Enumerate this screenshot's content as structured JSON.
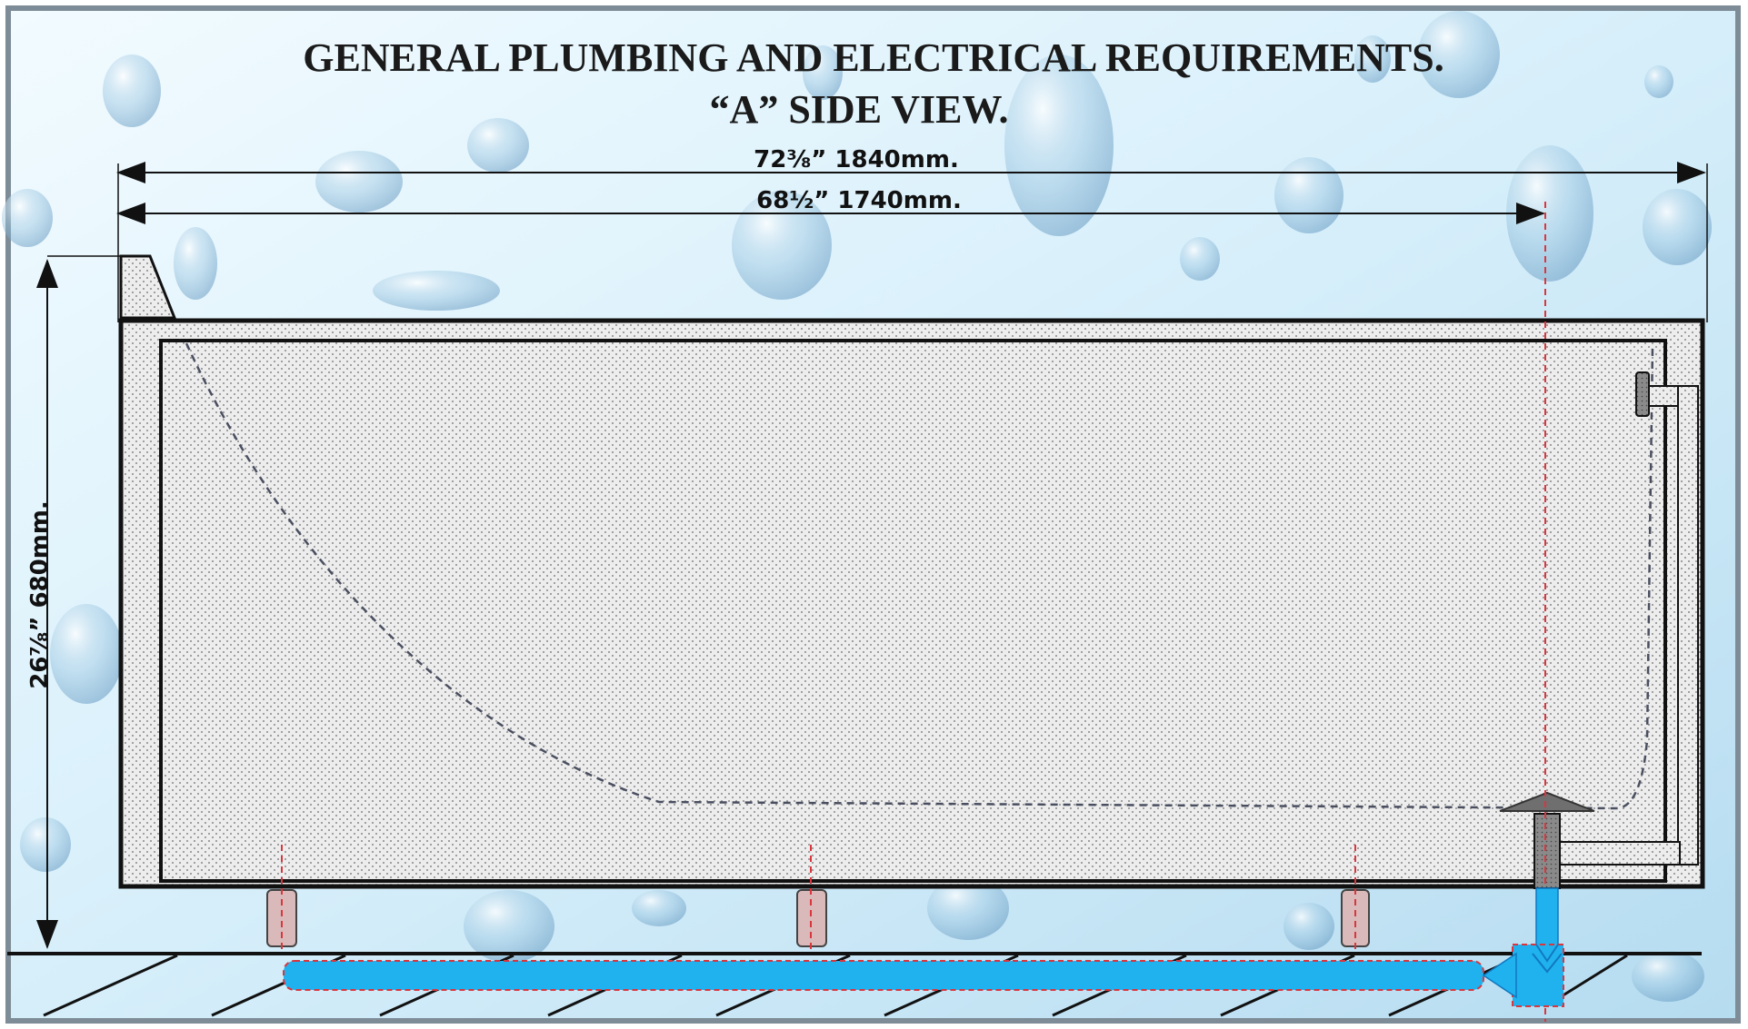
{
  "title": {
    "line1": "GENERAL PLUMBING AND ELECTRICAL  REQUIREMENTS.",
    "line2": "“A” SIDE VIEW."
  },
  "dimensions": {
    "overall_length": "72⅜” 1840mm.",
    "inner_length": "68½” 1740mm.",
    "height": "26⅞”  680mm."
  },
  "colors": {
    "background_light": "#e8f6fd",
    "background_blue": "#b9dff2",
    "outline": "#111111",
    "water_pipe": "#1fb2ef",
    "centerline": "#d9363e",
    "foot": "#d9b9b9"
  },
  "icons": {
    "background": "water-droplets",
    "flow": "arrow-left"
  }
}
